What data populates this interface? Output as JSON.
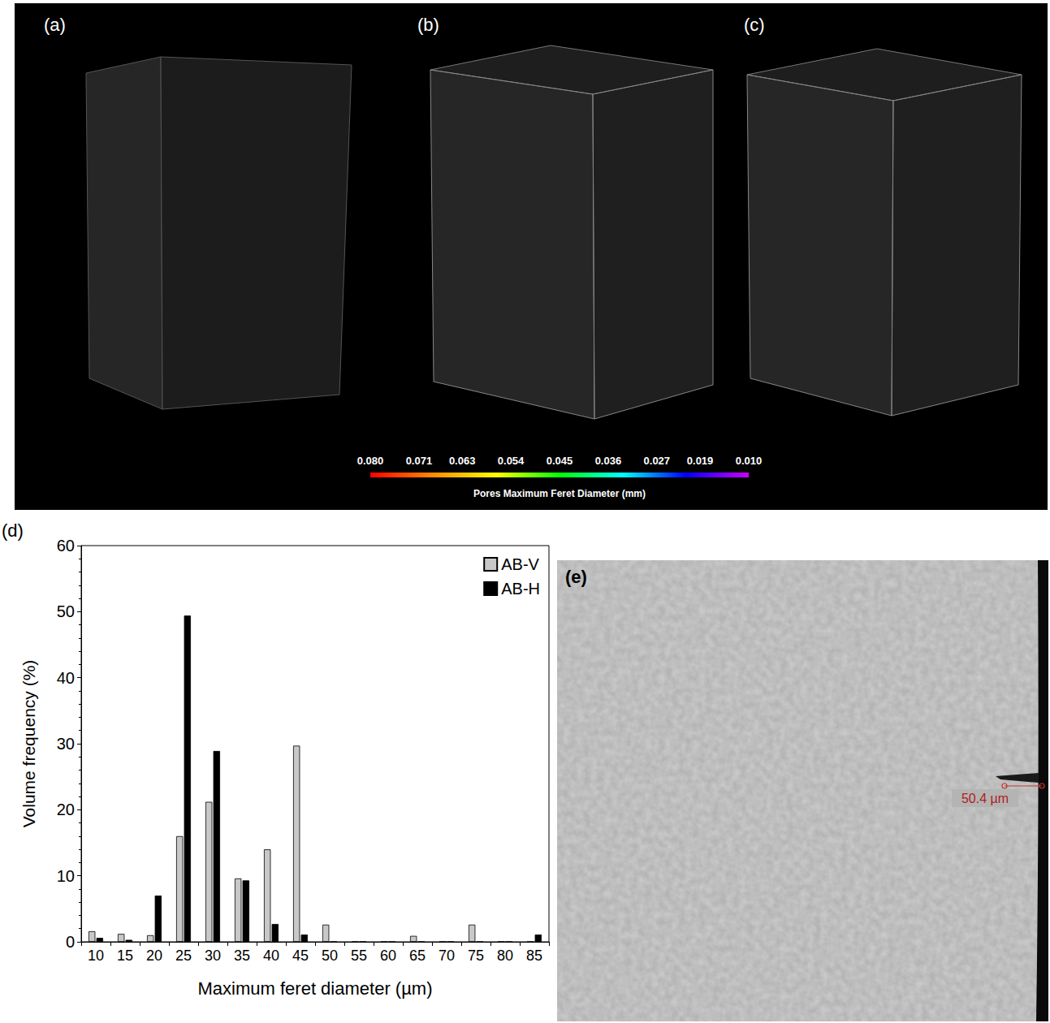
{
  "figure": {
    "ct_panels": {
      "labels": [
        "(a)",
        "(b)",
        "(c)"
      ]
    },
    "colorbar": {
      "title": "Pores Maximum Feret Diameter (mm)",
      "range": [
        0.08,
        0.01
      ],
      "ticks": [
        {
          "value": 0.08,
          "label": "0.080"
        },
        {
          "value": 0.071,
          "label": "0.071"
        },
        {
          "value": 0.063,
          "label": "0.063"
        },
        {
          "value": 0.054,
          "label": "0.054"
        },
        {
          "value": 0.045,
          "label": "0.045"
        },
        {
          "value": 0.036,
          "label": "0.036"
        },
        {
          "value": 0.027,
          "label": "0.027"
        },
        {
          "value": 0.019,
          "label": "0.019"
        },
        {
          "value": 0.01,
          "label": "0.010"
        }
      ],
      "colors": [
        "#ff0000",
        "#ff8c00",
        "#ffff00",
        "#00ff00",
        "#00ffff",
        "#0000ff",
        "#cc00ff"
      ]
    },
    "image_panel": {
      "label": "(e)",
      "annotation": "50.4 µm"
    }
  },
  "chart_data": {
    "type": "bar",
    "title": "(d)",
    "x_label": "Maximum feret diameter (µm)",
    "y_label": "Volume frequency (%)",
    "categories": [
      "10",
      "15",
      "20",
      "25",
      "30",
      "35",
      "40",
      "45",
      "50",
      "55",
      "60",
      "65",
      "70",
      "75",
      "80",
      "85"
    ],
    "series": [
      {
        "name": "AB-V",
        "color": "#c8c8c8",
        "values": [
          1.6,
          1.2,
          1.0,
          16.0,
          21.2,
          9.6,
          14.0,
          29.7,
          2.6,
          0,
          0,
          0.9,
          0,
          2.6,
          0,
          0
        ]
      },
      {
        "name": "AB-H",
        "color": "#000000",
        "values": [
          0.6,
          0.3,
          7.0,
          49.4,
          28.9,
          9.3,
          2.7,
          1.1,
          0,
          0,
          0,
          0,
          0,
          0,
          0,
          1.1
        ]
      }
    ],
    "ylim": [
      0,
      60
    ],
    "yticks": [
      0,
      10,
      20,
      30,
      40,
      50,
      60
    ],
    "grid": false,
    "legend": "top-right"
  }
}
